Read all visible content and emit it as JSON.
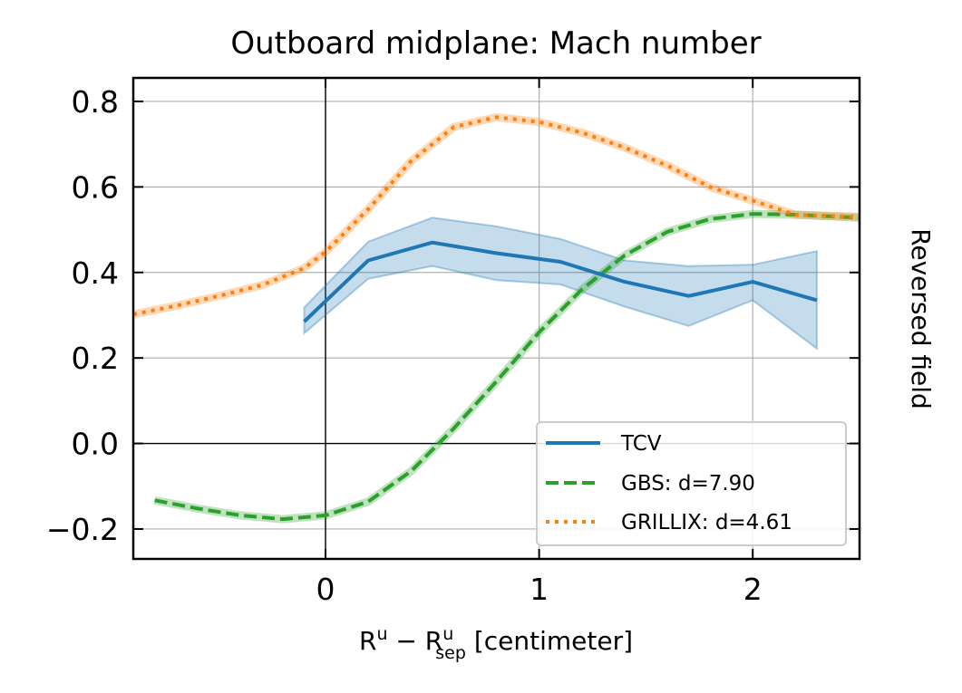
{
  "chart_data": {
    "type": "line",
    "title": "Outboard midplane: Mach number",
    "xlabel": {
      "base": "R",
      "sup1": "u",
      "minus": " − ",
      "base2": "R",
      "sup2": "u",
      "sub2": "sep",
      "unit": " [centimeter]"
    },
    "side_label": "Reversed field",
    "xlim": [
      -0.9,
      2.5
    ],
    "ylim": [
      -0.27,
      0.855
    ],
    "xticks": [
      0,
      1,
      2
    ],
    "xtick_labels": [
      "0",
      "1",
      "2"
    ],
    "yticks": [
      -0.2,
      0.0,
      0.2,
      0.4,
      0.6,
      0.8
    ],
    "ytick_labels": [
      "−0.2",
      "0.0",
      "0.2",
      "0.4",
      "0.6",
      "0.8"
    ],
    "grid": true,
    "legend_position": "lower-right",
    "series": [
      {
        "name": "TCV",
        "style": "solid",
        "color": "#1f77b4",
        "x": [
          -0.1,
          0.2,
          0.5,
          0.8,
          1.1,
          1.4,
          1.7,
          2.0,
          2.3
        ],
        "y": [
          0.285,
          0.428,
          0.47,
          0.445,
          0.425,
          0.378,
          0.345,
          0.378,
          0.335
        ],
        "band_upper": [
          0.318,
          0.472,
          0.528,
          0.508,
          0.478,
          0.428,
          0.415,
          0.418,
          0.45
        ],
        "band_lower": [
          0.258,
          0.385,
          0.415,
          0.382,
          0.372,
          0.32,
          0.275,
          0.335,
          0.222
        ]
      },
      {
        "name": "GBS: d=7.90",
        "style": "dashed",
        "color": "#2ca02c",
        "x": [
          -0.8,
          -0.6,
          -0.4,
          -0.2,
          0.0,
          0.2,
          0.4,
          0.6,
          0.8,
          1.0,
          1.2,
          1.4,
          1.6,
          1.8,
          2.0,
          2.2,
          2.5
        ],
        "y": [
          -0.133,
          -0.152,
          -0.168,
          -0.177,
          -0.168,
          -0.136,
          -0.065,
          0.035,
          0.145,
          0.26,
          0.36,
          0.44,
          0.495,
          0.525,
          0.537,
          0.535,
          0.528
        ]
      },
      {
        "name": "GRILLIX: d=4.61",
        "style": "dotted",
        "color": "#ff7f0e",
        "x": [
          -0.9,
          -0.7,
          -0.5,
          -0.3,
          -0.1,
          0.0,
          0.2,
          0.4,
          0.6,
          0.8,
          1.0,
          1.2,
          1.4,
          1.6,
          1.8,
          2.0,
          2.2,
          2.5
        ],
        "y": [
          0.302,
          0.322,
          0.345,
          0.37,
          0.41,
          0.448,
          0.548,
          0.66,
          0.74,
          0.763,
          0.752,
          0.727,
          0.692,
          0.65,
          0.6,
          0.568,
          0.535,
          0.53
        ]
      }
    ]
  }
}
